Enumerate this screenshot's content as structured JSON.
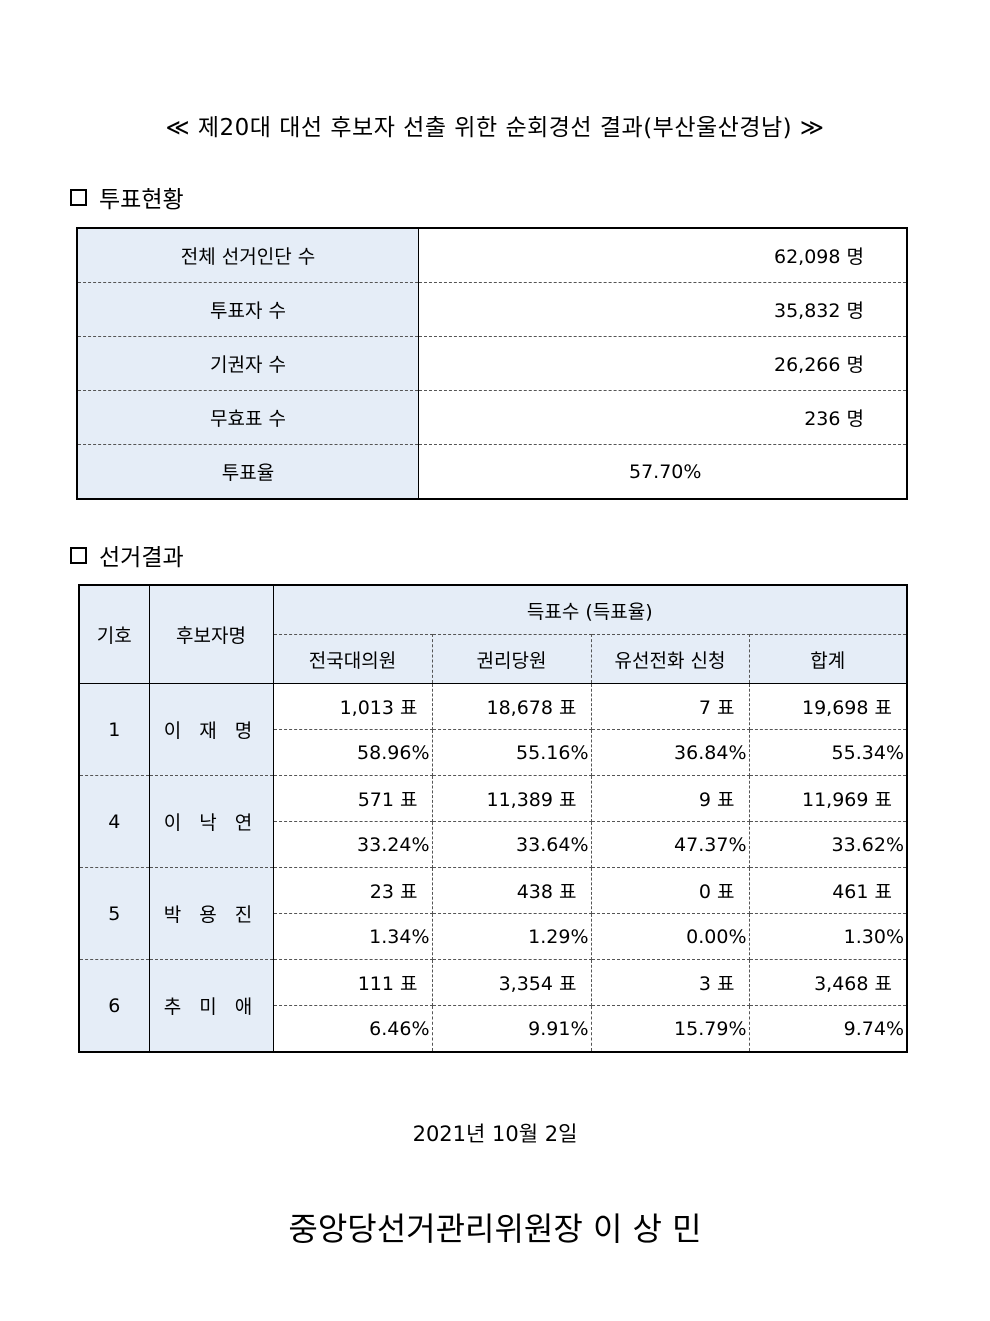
{
  "title": "≪ 제20대 대선 후보자 선출 위한 순회경선 결과(부산울산경남) ≫",
  "section1": "투표현황",
  "turnout": {
    "rows": [
      {
        "label": "전체 선거인단 수",
        "value": "62,098 명"
      },
      {
        "label": "투표자 수",
        "value": "35,832 명"
      },
      {
        "label": "기권자 수",
        "value": "26,266 명"
      },
      {
        "label": "무효표 수",
        "value": "236 명"
      }
    ],
    "rate_label": "투표율",
    "rate_value": "57.70%"
  },
  "section2": "선거결과",
  "results": {
    "headers": {
      "number": "기호",
      "name": "후보자명",
      "group": "득표수 (득표율)",
      "cols": [
        "전국대의원",
        "권리당원",
        "유선전화 신청",
        "합계"
      ]
    },
    "candidates": [
      {
        "number": "1",
        "name": "이 재 명",
        "votes": [
          "1,013  표",
          "18,678  표",
          "7  표",
          "19,698  표"
        ],
        "pcts": [
          "58.96%",
          "55.16%",
          "36.84%",
          "55.34%"
        ]
      },
      {
        "number": "4",
        "name": "이 낙 연",
        "votes": [
          "571  표",
          "11,389  표",
          "9  표",
          "11,969  표"
        ],
        "pcts": [
          "33.24%",
          "33.64%",
          "47.37%",
          "33.62%"
        ]
      },
      {
        "number": "5",
        "name": "박 용 진",
        "votes": [
          "23  표",
          "438  표",
          "0  표",
          "461  표"
        ],
        "pcts": [
          "1.34%",
          "1.29%",
          "0.00%",
          "1.30%"
        ]
      },
      {
        "number": "6",
        "name": "추 미 애",
        "votes": [
          "111  표",
          "3,354  표",
          "3  표",
          "3,468  표"
        ],
        "pcts": [
          "6.46%",
          "9.91%",
          "15.79%",
          "9.74%"
        ]
      }
    ]
  },
  "date": "2021년  10월  2일",
  "signature": "중앙당선거관리위원장 이 상 민",
  "colors": {
    "header_bg": "#e5edf7",
    "border": "#000000"
  }
}
